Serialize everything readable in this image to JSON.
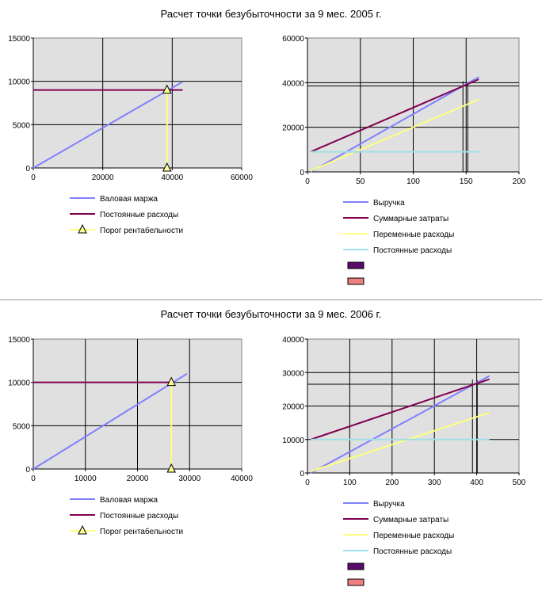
{
  "sections": [
    {
      "title": "Расчет точки безубыточности за 9 мес. 2005 г.",
      "left_chart": {
        "type": "line",
        "xlim": [
          0,
          60000
        ],
        "ylim": [
          0,
          15000
        ],
        "x_ticks": [
          "0",
          "20000",
          "40000",
          "60000"
        ],
        "y_ticks": [
          "0",
          "5000",
          "10000",
          "15000"
        ],
        "series": [
          {
            "name": "Валовая маржа",
            "color": "#8080ff",
            "points": [
              [
                0,
                0
              ],
              [
                43000,
                9950
              ]
            ]
          },
          {
            "name": "Постоянные расходы",
            "color": "#800050",
            "points": [
              [
                0,
                9000
              ],
              [
                43000,
                9000
              ]
            ]
          },
          {
            "name": "Порог рентабельности",
            "color": "#ffff80",
            "marker": "triangle",
            "points": [
              [
                38500,
                0
              ],
              [
                38500,
                9000
              ]
            ]
          }
        ]
      },
      "right_chart": {
        "type": "line",
        "xlim": [
          0,
          200
        ],
        "ylim": [
          0,
          60000
        ],
        "x_ticks": [
          "0",
          "50",
          "100",
          "150",
          "200"
        ],
        "y_ticks": [
          "0",
          "20000",
          "40000",
          "60000"
        ],
        "series": [
          {
            "name": "Выручка",
            "color": "#8080ff",
            "points": [
              [
                3,
                0
              ],
              [
                162,
                42500
              ]
            ]
          },
          {
            "name": "Суммарные затраты",
            "color": "#800050",
            "points": [
              [
                3,
                9000
              ],
              [
                162,
                41500
              ]
            ]
          },
          {
            "name": "Переменные расходы",
            "color": "#ffff80",
            "points": [
              [
                3,
                500
              ],
              [
                162,
                32500
              ]
            ]
          },
          {
            "name": "Постоянные расходы",
            "color": "#a0e0e8",
            "points": [
              [
                3,
                9000
              ],
              [
                162,
                9000
              ]
            ]
          }
        ],
        "guides": {
          "color": "#000000",
          "x": 147,
          "y": 38500
        },
        "extra_legend_swatches": [
          "#5a0a6a",
          "#f08080"
        ]
      }
    },
    {
      "title": "Расчет точки безубыточности за 9 мес. 2006 г.",
      "left_chart": {
        "type": "line",
        "xlim": [
          0,
          40000
        ],
        "ylim": [
          0,
          15000
        ],
        "x_ticks": [
          "0",
          "10000",
          "20000",
          "30000",
          "40000"
        ],
        "y_ticks": [
          "0",
          "5000",
          "10000",
          "15000"
        ],
        "series": [
          {
            "name": "Валовая маржа",
            "color": "#8080ff",
            "points": [
              [
                0,
                0
              ],
              [
                29500,
                11000
              ]
            ]
          },
          {
            "name": "Постоянные расходы",
            "color": "#800050",
            "points": [
              [
                0,
                10000
              ],
              [
                26500,
                10000
              ]
            ]
          },
          {
            "name": "Порог рентабельности",
            "color": "#ffff80",
            "marker": "triangle",
            "points": [
              [
                26500,
                0
              ],
              [
                26500,
                10000
              ]
            ]
          }
        ]
      },
      "right_chart": {
        "type": "line",
        "xlim": [
          0,
          500
        ],
        "ylim": [
          0,
          40000
        ],
        "x_ticks": [
          "0",
          "100",
          "200",
          "300",
          "400",
          "500"
        ],
        "y_ticks": [
          "0",
          "10000",
          "20000",
          "30000",
          "40000"
        ],
        "series": [
          {
            "name": "Выручка",
            "color": "#8080ff",
            "points": [
              [
                8,
                0
              ],
              [
                430,
                29000
              ]
            ]
          },
          {
            "name": "Суммарные затраты",
            "color": "#800050",
            "points": [
              [
                8,
                10000
              ],
              [
                430,
                28000
              ]
            ]
          },
          {
            "name": "Переменные расходы",
            "color": "#ffff80",
            "points": [
              [
                8,
                500
              ],
              [
                430,
                18000
              ]
            ]
          },
          {
            "name": "Постоянные расходы",
            "color": "#a0e0e8",
            "points": [
              [
                8,
                10000
              ],
              [
                430,
                10000
              ]
            ]
          }
        ],
        "guides": {
          "color": "#000000",
          "x": 390,
          "y": 26500
        },
        "extra_legend_swatches": [
          "#5a0a6a",
          "#f08080"
        ]
      }
    }
  ]
}
